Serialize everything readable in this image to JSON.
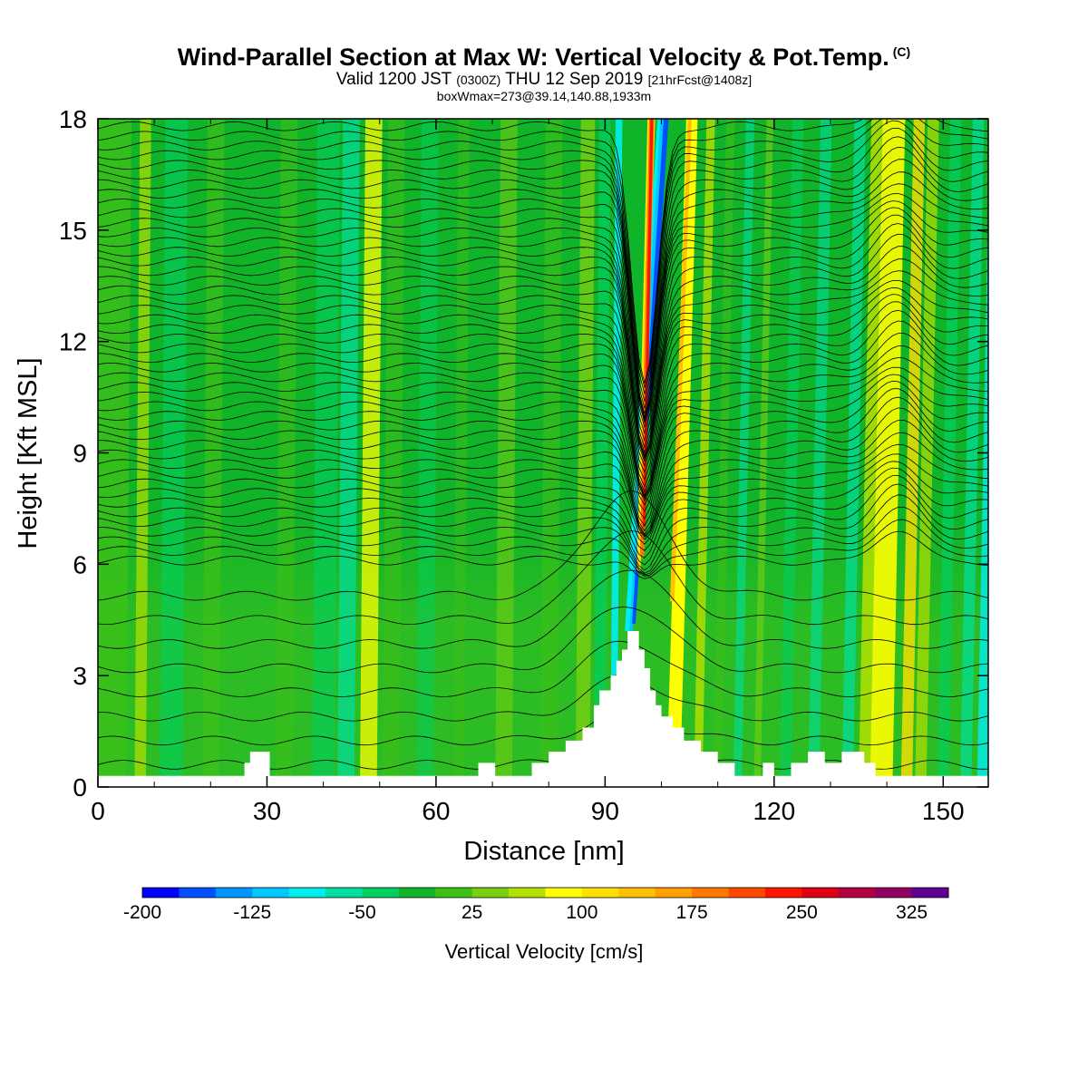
{
  "title": {
    "main": "Wind-Parallel Section at Max W: Vertical Velocity & Pot.Temp.",
    "copyright_mark": "(C)",
    "valid_prefix": "Valid 1200 JST",
    "valid_utc": "(0300Z)",
    "valid_date": "THU 12 Sep 2019",
    "forecast": "[21hrFcst@1408z]",
    "box_info": "boxWmax=273@39.14,140.88,1933m"
  },
  "chart_data": {
    "type": "heatmap",
    "xlabel": "Distance [nm]",
    "ylabel": "Height [Kft MSL]",
    "xlim": [
      0,
      158
    ],
    "ylim": [
      0,
      18
    ],
    "x_ticks": [
      0,
      30,
      60,
      90,
      120,
      150
    ],
    "y_ticks": [
      0,
      3,
      6,
      9,
      12,
      15,
      18
    ],
    "colorbar": {
      "title": "Vertical Velocity [cm/s]",
      "min": -200,
      "step": 25,
      "labels": [
        -200,
        -125,
        -50,
        25,
        100,
        175,
        250,
        325
      ],
      "colors": [
        "#0000ff",
        "#0050ff",
        "#0096ff",
        "#00c8ff",
        "#00eeee",
        "#00dfa0",
        "#00d060",
        "#10b428",
        "#3cc018",
        "#78d010",
        "#b4e000",
        "#ffff00",
        "#ffe000",
        "#ffc000",
        "#ffa000",
        "#ff7800",
        "#ff4800",
        "#ff1400",
        "#e00014",
        "#b00040",
        "#900060",
        "#600090"
      ]
    },
    "updraft_max": {
      "x": 97.5,
      "w": 273
    },
    "terrain_profile": [
      [
        0,
        0.3
      ],
      [
        25,
        0.3
      ],
      [
        26,
        0.65
      ],
      [
        27,
        0.95
      ],
      [
        30,
        0.95
      ],
      [
        30.5,
        0.3
      ],
      [
        67,
        0.3
      ],
      [
        67.5,
        0.65
      ],
      [
        70,
        0.65
      ],
      [
        70.5,
        0.3
      ],
      [
        76,
        0.3
      ],
      [
        77,
        0.65
      ],
      [
        79,
        0.65
      ],
      [
        80,
        0.95
      ],
      [
        82,
        0.95
      ],
      [
        83,
        1.25
      ],
      [
        85,
        1.25
      ],
      [
        86,
        1.6
      ],
      [
        87,
        1.6
      ],
      [
        88,
        2.2
      ],
      [
        89,
        2.6
      ],
      [
        90,
        2.6
      ],
      [
        91,
        3.0
      ],
      [
        92,
        3.4
      ],
      [
        93,
        3.7
      ],
      [
        94,
        4.2
      ],
      [
        95,
        4.2
      ],
      [
        96,
        3.7
      ],
      [
        97,
        3.2
      ],
      [
        98,
        2.6
      ],
      [
        99,
        2.2
      ],
      [
        100,
        1.9
      ],
      [
        102,
        1.6
      ],
      [
        104,
        1.25
      ],
      [
        106,
        1.25
      ],
      [
        107,
        0.95
      ],
      [
        109,
        0.95
      ],
      [
        110,
        0.65
      ],
      [
        112,
        0.65
      ],
      [
        113,
        0.3
      ],
      [
        117,
        0.3
      ],
      [
        118,
        0.65
      ],
      [
        119,
        0.65
      ],
      [
        120,
        0.3
      ],
      [
        122,
        0.3
      ],
      [
        123,
        0.65
      ],
      [
        125,
        0.65
      ],
      [
        126,
        0.95
      ],
      [
        128,
        0.95
      ],
      [
        129,
        0.65
      ],
      [
        131,
        0.65
      ],
      [
        132,
        0.95
      ],
      [
        135,
        0.95
      ],
      [
        136,
        0.65
      ],
      [
        137,
        0.65
      ],
      [
        138,
        0.3
      ],
      [
        158,
        0.3
      ]
    ]
  }
}
